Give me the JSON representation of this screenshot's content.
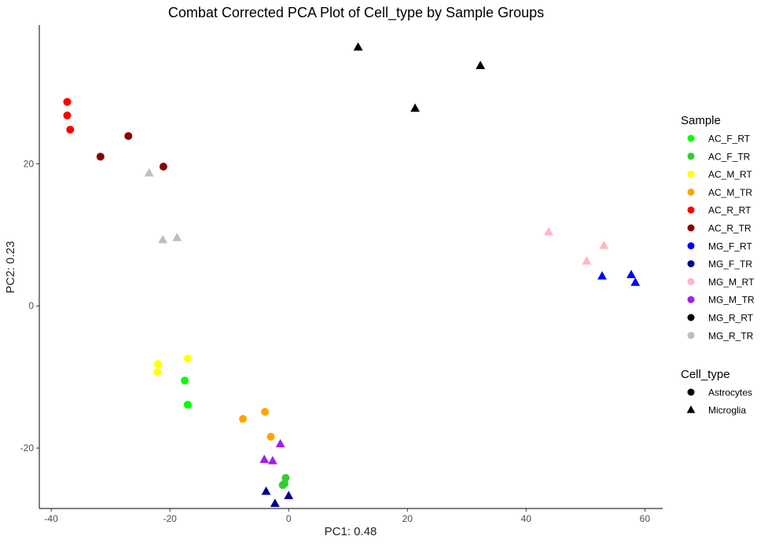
{
  "chart_data": {
    "type": "scatter",
    "title": "Combat Corrected PCA Plot of Cell_type by Sample Groups",
    "xlabel": "PC1: 0.48",
    "ylabel": "PC2: 0.23",
    "xlim": [
      -42,
      63
    ],
    "ylim": [
      -28.5,
      39.5
    ],
    "xticks": [
      -40,
      -20,
      0,
      20,
      40,
      60
    ],
    "yticks": [
      -20,
      0,
      20
    ],
    "grid": false,
    "legend_placement": "right",
    "legends": [
      {
        "title": "Sample",
        "entries": [
          {
            "label": "AC_F_RT",
            "color": "#00ff00",
            "shape": "circle"
          },
          {
            "label": "AC_F_TR",
            "color": "#32cd32",
            "shape": "circle"
          },
          {
            "label": "AC_M_RT",
            "color": "#ffff00",
            "shape": "circle"
          },
          {
            "label": "AC_M_TR",
            "color": "#ffa500",
            "shape": "circle"
          },
          {
            "label": "AC_R_RT",
            "color": "#ff0000",
            "shape": "circle"
          },
          {
            "label": "AC_R_TR",
            "color": "#8b0000",
            "shape": "circle"
          },
          {
            "label": "MG_F_RT",
            "color": "#0000ff",
            "shape": "circle"
          },
          {
            "label": "MG_F_TR",
            "color": "#00008b",
            "shape": "circle"
          },
          {
            "label": "MG_M_RT",
            "color": "#ffb6c1",
            "shape": "circle"
          },
          {
            "label": "MG_M_TR",
            "color": "#a020f0",
            "shape": "circle"
          },
          {
            "label": "MG_R_RT",
            "color": "#000000",
            "shape": "circle"
          },
          {
            "label": "MG_R_TR",
            "color": "#bebebe",
            "shape": "circle"
          }
        ]
      },
      {
        "title": "Cell_type",
        "entries": [
          {
            "label": "Astrocytes",
            "color": "#000000",
            "shape": "circle"
          },
          {
            "label": "Microglia",
            "color": "#000000",
            "shape": "triangle"
          }
        ]
      }
    ],
    "series": [
      {
        "name": "AC_F_RT",
        "color": "#00ff00",
        "shape": "circle",
        "x": [
          -17.5,
          -17.0
        ],
        "y": [
          -10.5,
          -13.9
        ]
      },
      {
        "name": "AC_F_TR",
        "color": "#32cd32",
        "shape": "circle",
        "x": [
          -0.5,
          -1.0,
          -0.7
        ],
        "y": [
          -24.2,
          -25.2,
          -25.0
        ]
      },
      {
        "name": "AC_M_RT",
        "color": "#ffff00",
        "shape": "circle",
        "x": [
          -22.0,
          -22.1,
          -17.0
        ],
        "y": [
          -8.2,
          -9.3,
          -7.4
        ]
      },
      {
        "name": "AC_M_TR",
        "color": "#ffa500",
        "shape": "circle",
        "x": [
          -7.7,
          -4.0,
          -3.0
        ],
        "y": [
          -15.9,
          -14.9,
          -18.4
        ]
      },
      {
        "name": "AC_R_RT",
        "color": "#ff0000",
        "shape": "circle",
        "x": [
          -37.3,
          -37.3,
          -36.8
        ],
        "y": [
          28.7,
          26.8,
          24.8
        ]
      },
      {
        "name": "AC_R_TR",
        "color": "#8b0000",
        "shape": "circle",
        "x": [
          -27.0,
          -31.7,
          -21.1
        ],
        "y": [
          23.9,
          21.0,
          19.6
        ]
      },
      {
        "name": "MG_F_RT",
        "color": "#0000ff",
        "shape": "triangle",
        "x": [
          52.8,
          57.7,
          58.4
        ],
        "y": [
          4.2,
          4.4,
          3.3
        ]
      },
      {
        "name": "MG_F_TR",
        "color": "#00008b",
        "shape": "triangle",
        "x": [
          -3.8,
          -2.3,
          0.0
        ],
        "y": [
          -26.1,
          -27.8,
          -26.7
        ]
      },
      {
        "name": "MG_M_RT",
        "color": "#ffb6c1",
        "shape": "triangle",
        "x": [
          43.8,
          50.2,
          53.1
        ],
        "y": [
          10.4,
          6.3,
          8.5
        ]
      },
      {
        "name": "MG_M_TR",
        "color": "#a020f0",
        "shape": "triangle",
        "x": [
          -4.1,
          -2.7,
          -1.4
        ],
        "y": [
          -21.6,
          -21.8,
          -19.4
        ]
      },
      {
        "name": "MG_R_RT",
        "color": "#000000",
        "shape": "triangle",
        "x": [
          11.7,
          32.3,
          21.3
        ],
        "y": [
          36.4,
          33.8,
          27.8
        ]
      },
      {
        "name": "MG_R_TR",
        "color": "#bebebe",
        "shape": "triangle",
        "x": [
          -23.5,
          -21.2,
          -18.8
        ],
        "y": [
          18.7,
          9.3,
          9.6
        ]
      }
    ]
  }
}
